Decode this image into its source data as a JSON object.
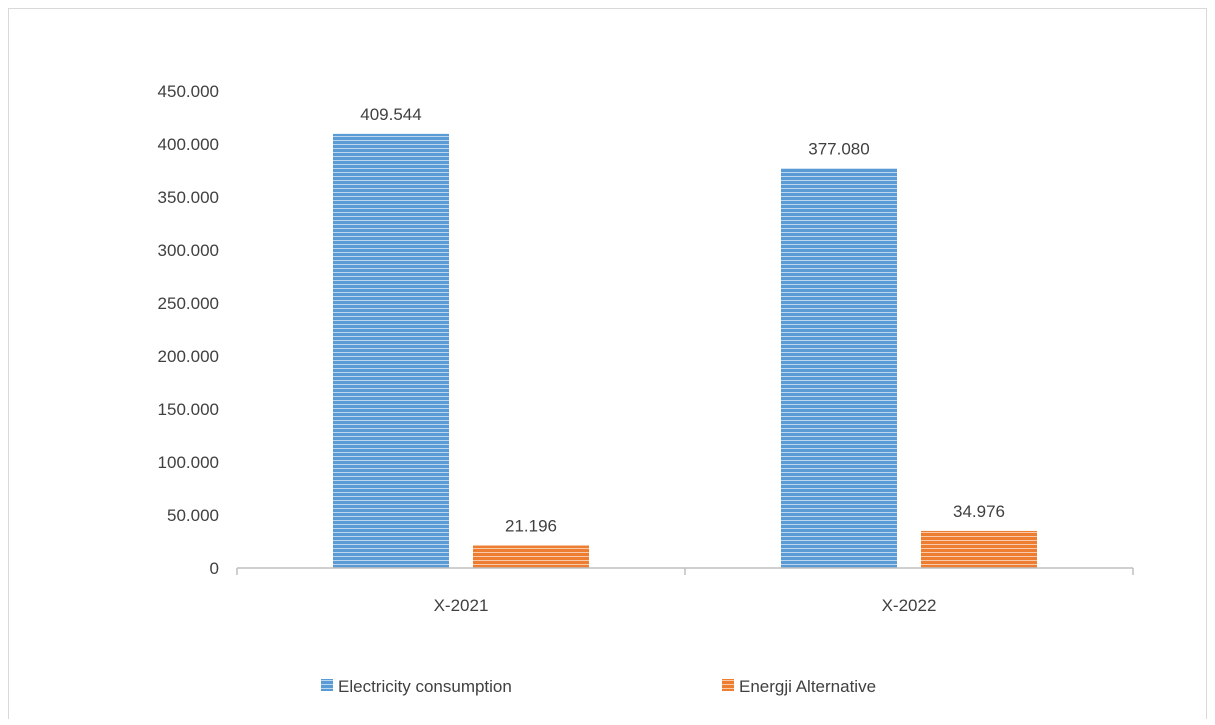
{
  "colors": {
    "electricity": "#5b9bd5",
    "electricity_stripe": "#bdd7ee",
    "alternative": "#ed7d31",
    "alternative_stripe": "#f8cbad",
    "axis": "#bfbfbf",
    "text": "#404040"
  },
  "chart_data": {
    "type": "bar",
    "title": "",
    "xlabel": "",
    "ylabel": "",
    "categories": [
      "X-2021",
      "X-2022"
    ],
    "ylim": [
      0,
      450000
    ],
    "ytick_values": [
      0,
      50000,
      100000,
      150000,
      200000,
      250000,
      300000,
      350000,
      400000,
      450000
    ],
    "ytick_labels": [
      "0",
      "50.000",
      "100.000",
      "150.000",
      "200.000",
      "250.000",
      "300.000",
      "350.000",
      "400.000",
      "450.000"
    ],
    "grid": false,
    "legend_position": "bottom",
    "series": [
      {
        "name": "Electricity consumption",
        "values": [
          409544,
          377080
        ],
        "labels": [
          "409.544",
          "377.080"
        ],
        "color_key": "electricity"
      },
      {
        "name": "Energji Alternative",
        "values": [
          21196,
          34976
        ],
        "labels": [
          "21.196",
          "34.976"
        ],
        "color_key": "alternative"
      }
    ]
  }
}
